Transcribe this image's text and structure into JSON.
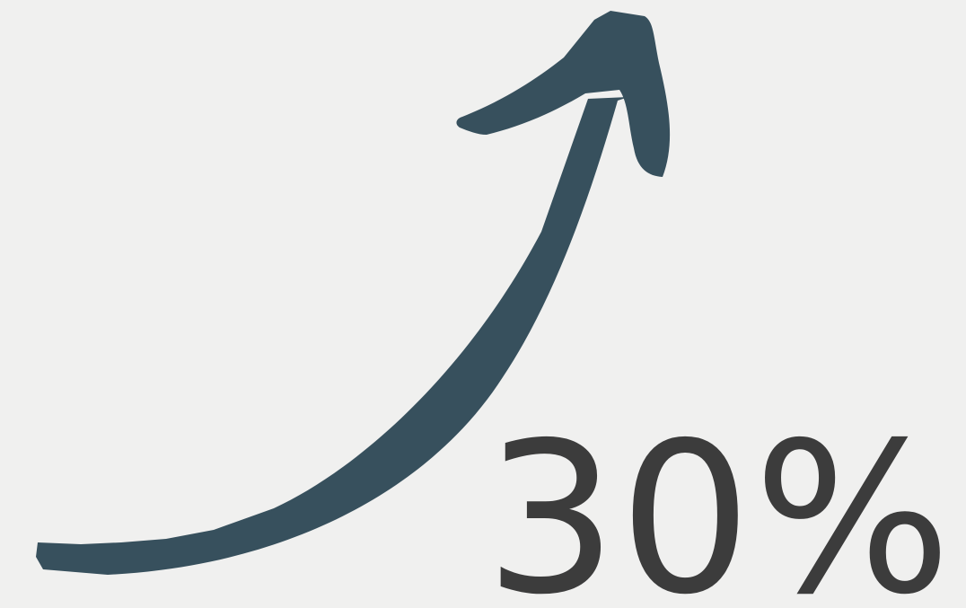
{
  "graphic": {
    "background_color": "#f0f0ef",
    "arrow_color": "#37505d",
    "text_color": "#3c3c3c",
    "icon": "hand-drawn-upward-curved-arrow-icon"
  },
  "stat": {
    "value": "30%"
  }
}
